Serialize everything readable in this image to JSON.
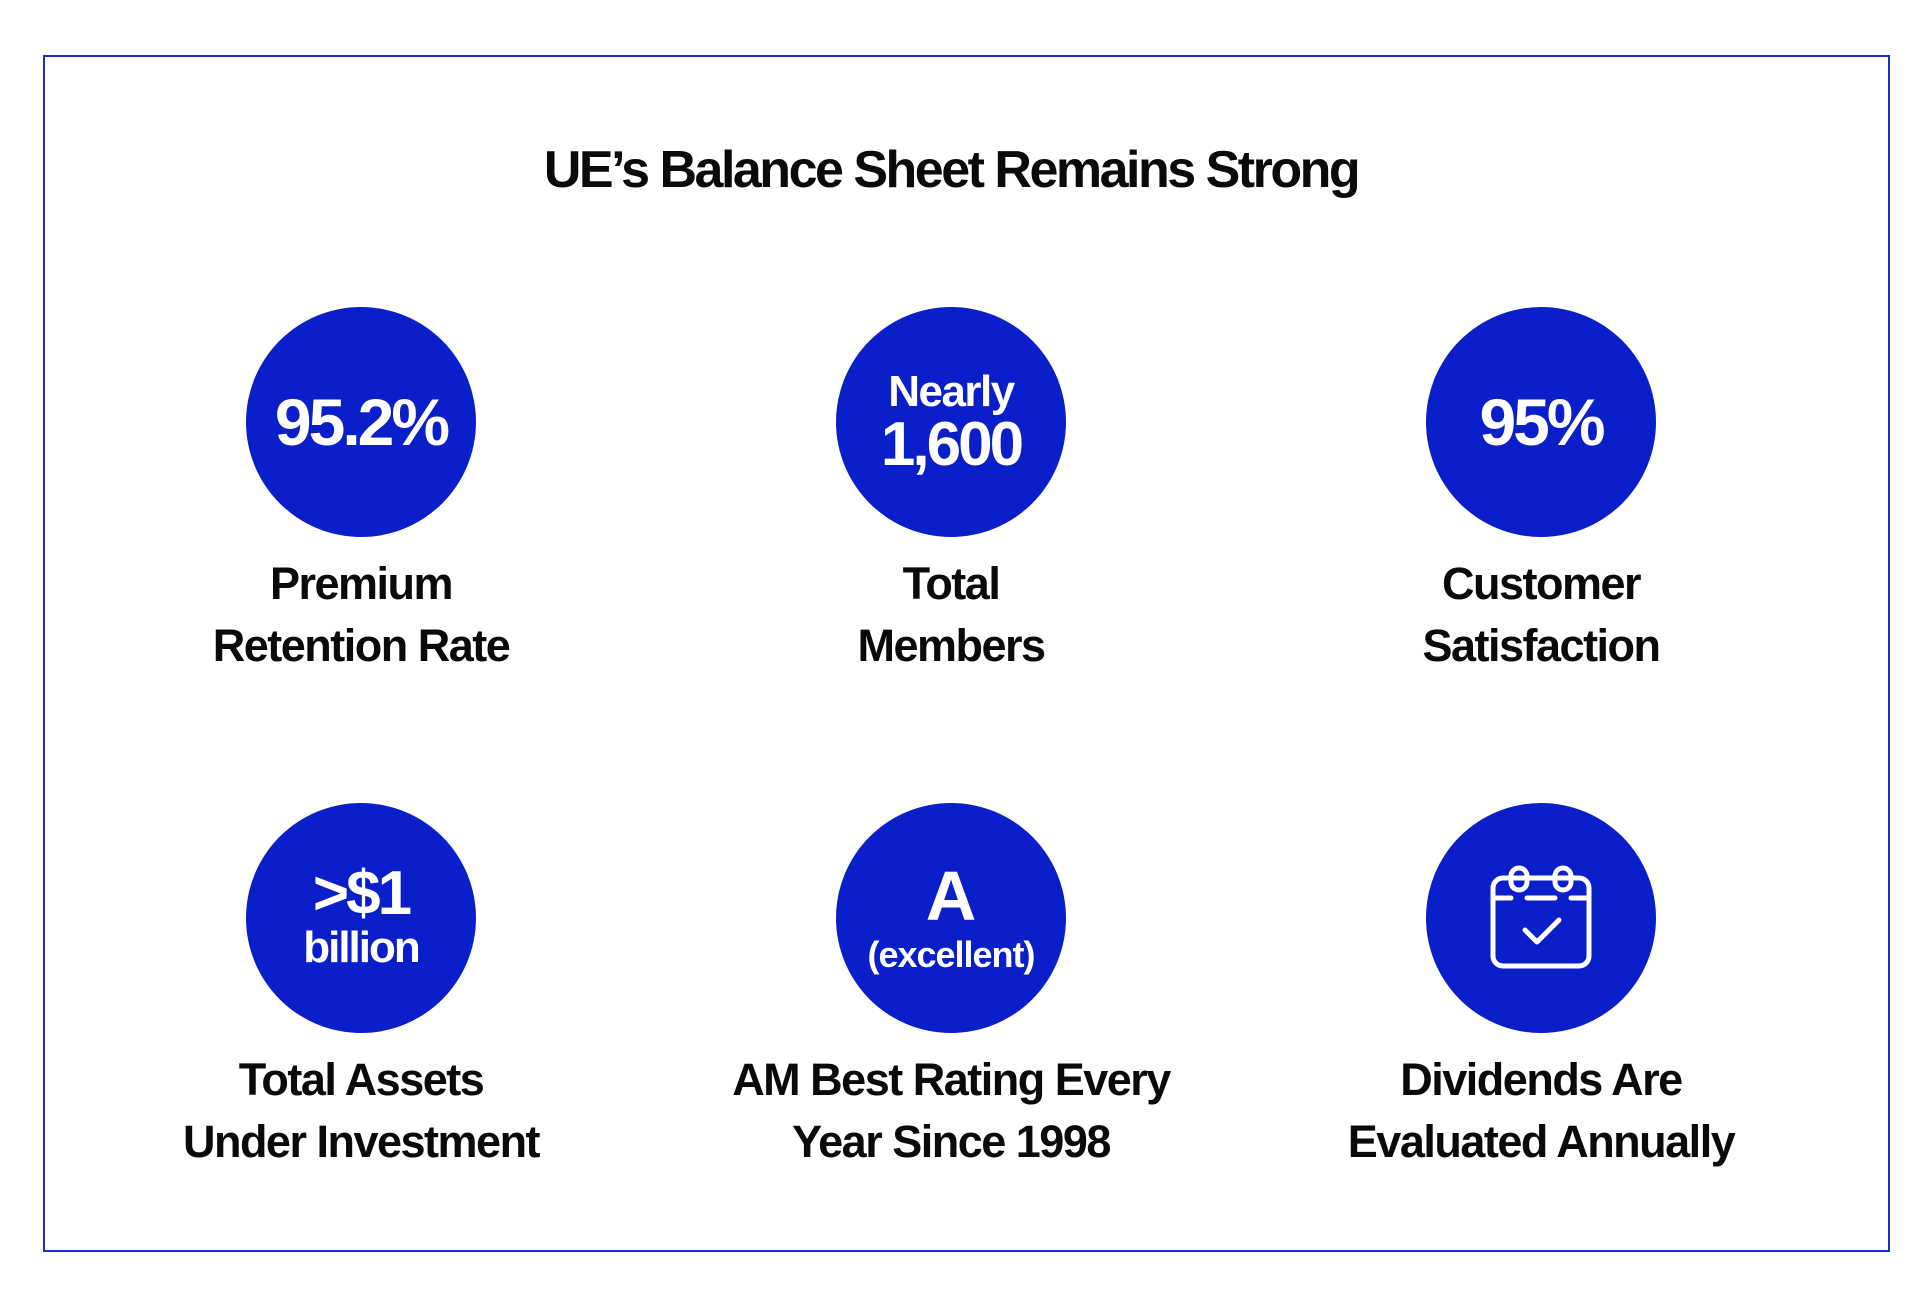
{
  "title": "UE’s Balance Sheet Remains Strong",
  "stats": [
    {
      "circle_value": "95.2%",
      "caption_line1": "Premium",
      "caption_line2": "Retention Rate"
    },
    {
      "circle_prefix": "Nearly",
      "circle_value": "1,600",
      "caption_line1": "Total",
      "caption_line2": "Members"
    },
    {
      "circle_value": "95%",
      "caption_line1": "Customer",
      "caption_line2": "Satisfaction"
    },
    {
      "circle_value": ">$1",
      "circle_suffix": "billion",
      "caption_line1": "Total Assets",
      "caption_line2": "Under Investment"
    },
    {
      "circle_value": "A",
      "circle_suffix": "(excellent)",
      "caption_line1": "AM Best Rating Every",
      "caption_line2": "Year Since 1998"
    },
    {
      "icon": "calendar-check-icon",
      "caption_line1": "Dividends Are",
      "caption_line2": "Evaluated Annually"
    }
  ],
  "colors": {
    "accent": "#0a1fc9",
    "border": "#1a2fc8",
    "text": "#0a0a0a"
  }
}
